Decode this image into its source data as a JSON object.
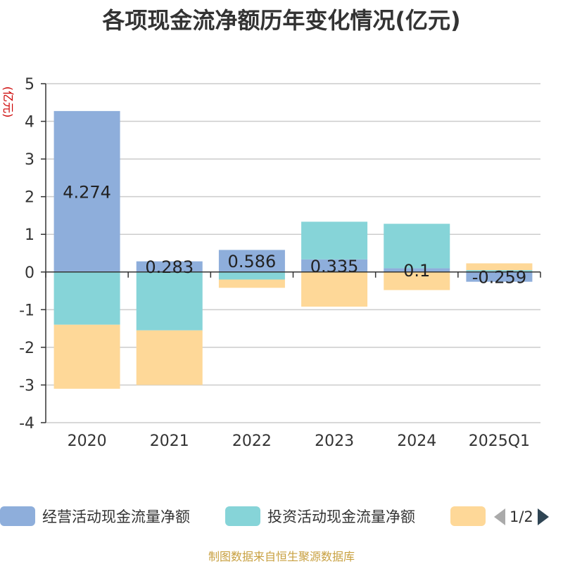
{
  "title": "各项现金流净额历年变化情况(亿元)",
  "source": "制图数据来自恒生聚源数据库",
  "pager": {
    "text": "1/2"
  },
  "colors": {
    "operating": "#8eaedb",
    "investing": "#86d4d8",
    "financing": "#fed898"
  },
  "chart_data": {
    "type": "bar",
    "stacked": true,
    "title": "各项现金流净额历年变化情况(亿元)",
    "ylabel": "(亿元)",
    "xlabel": "",
    "ylim": [
      -4,
      5
    ],
    "yticks": [
      5,
      4,
      3,
      2,
      1,
      0,
      -1,
      -2,
      -3,
      -4
    ],
    "grid": true,
    "legend_position": "bottom",
    "categories": [
      "2020",
      "2021",
      "2022",
      "2023",
      "2024",
      "2025Q1"
    ],
    "series": [
      {
        "name": "经营活动现金流量净额",
        "values": [
          4.274,
          0.283,
          0.586,
          0.335,
          0.1,
          -0.259
        ],
        "data_labels": [
          "4.274",
          "0.283",
          "0.586",
          "0.335",
          "0.1",
          "-0.259"
        ]
      },
      {
        "name": "投资活动现金流量净额",
        "values": [
          -1.4,
          -1.55,
          -0.2,
          1.0,
          1.18,
          0.05
        ]
      },
      {
        "name": "",
        "values": [
          -1.7,
          -1.45,
          -0.22,
          -0.92,
          -0.48,
          0.18
        ]
      }
    ]
  }
}
